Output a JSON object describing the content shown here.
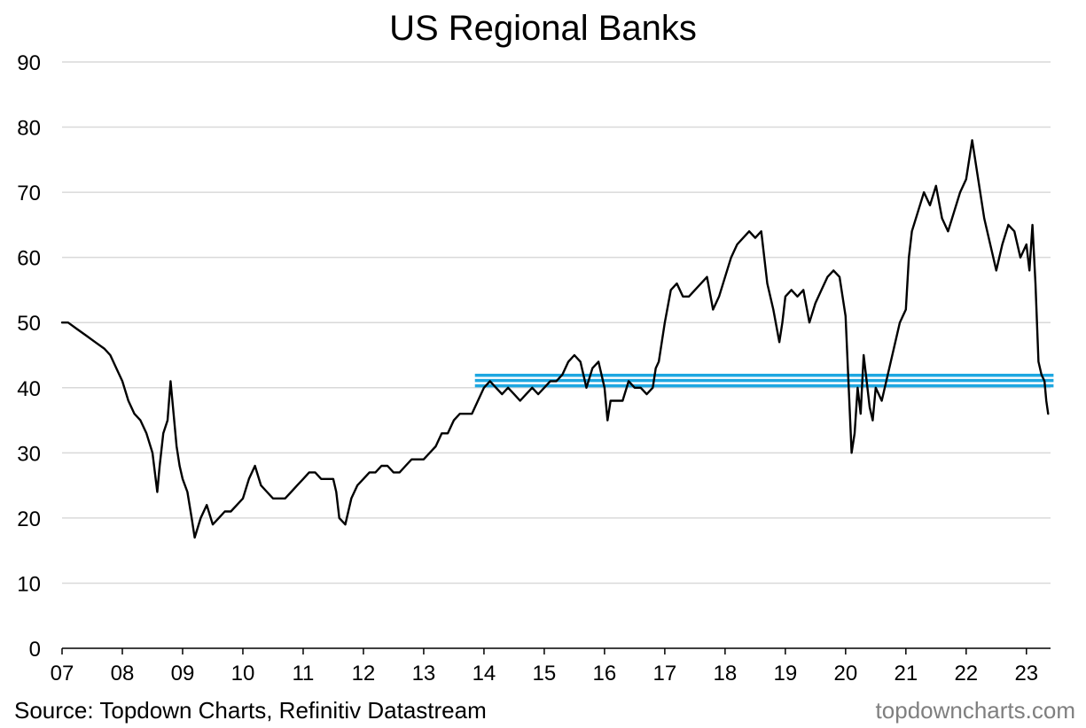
{
  "chart_data": {
    "type": "line",
    "title": "US Regional Banks",
    "xlabel": "",
    "ylabel": "",
    "ylim": [
      0,
      90
    ],
    "yticks": [
      0,
      10,
      20,
      30,
      40,
      50,
      60,
      70,
      80,
      90
    ],
    "xlim": [
      2007.0,
      2023.4
    ],
    "xticks": [
      {
        "value": 2007,
        "label": "07"
      },
      {
        "value": 2008,
        "label": "08"
      },
      {
        "value": 2009,
        "label": "09"
      },
      {
        "value": 2010,
        "label": "10"
      },
      {
        "value": 2011,
        "label": "11"
      },
      {
        "value": 2012,
        "label": "12"
      },
      {
        "value": 2013,
        "label": "13"
      },
      {
        "value": 2014,
        "label": "14"
      },
      {
        "value": 2015,
        "label": "15"
      },
      {
        "value": 2016,
        "label": "16"
      },
      {
        "value": 2017,
        "label": "17"
      },
      {
        "value": 2018,
        "label": "18"
      },
      {
        "value": 2019,
        "label": "19"
      },
      {
        "value": 2020,
        "label": "20"
      },
      {
        "value": 2021,
        "label": "21"
      },
      {
        "value": 2022,
        "label": "22"
      },
      {
        "value": 2023,
        "label": "23"
      }
    ],
    "grid": "horizontal",
    "series": [
      {
        "color": "#000000",
        "x": [
          2007.0,
          2007.1,
          2007.25,
          2007.4,
          2007.55,
          2007.7,
          2007.8,
          2007.9,
          2008.0,
          2008.1,
          2008.2,
          2008.3,
          2008.4,
          2008.5,
          2008.58,
          2008.62,
          2008.68,
          2008.75,
          2008.8,
          2008.85,
          2008.9,
          2008.95,
          2009.0,
          2009.08,
          2009.15,
          2009.2,
          2009.3,
          2009.4,
          2009.5,
          2009.6,
          2009.7,
          2009.8,
          2009.9,
          2010.0,
          2010.1,
          2010.2,
          2010.3,
          2010.4,
          2010.5,
          2010.6,
          2010.7,
          2010.8,
          2010.9,
          2011.0,
          2011.1,
          2011.2,
          2011.3,
          2011.4,
          2011.5,
          2011.55,
          2011.6,
          2011.7,
          2011.75,
          2011.8,
          2011.9,
          2012.0,
          2012.1,
          2012.2,
          2012.3,
          2012.4,
          2012.5,
          2012.6,
          2012.7,
          2012.8,
          2012.9,
          2013.0,
          2013.1,
          2013.2,
          2013.3,
          2013.4,
          2013.5,
          2013.6,
          2013.7,
          2013.8,
          2013.9,
          2014.0,
          2014.1,
          2014.2,
          2014.3,
          2014.4,
          2014.5,
          2014.6,
          2014.7,
          2014.8,
          2014.9,
          2015.0,
          2015.1,
          2015.2,
          2015.3,
          2015.4,
          2015.5,
          2015.6,
          2015.7,
          2015.8,
          2015.9,
          2016.0,
          2016.05,
          2016.1,
          2016.2,
          2016.3,
          2016.4,
          2016.5,
          2016.6,
          2016.7,
          2016.8,
          2016.85,
          2016.9,
          2017.0,
          2017.1,
          2017.2,
          2017.3,
          2017.4,
          2017.5,
          2017.6,
          2017.7,
          2017.8,
          2017.9,
          2018.0,
          2018.1,
          2018.2,
          2018.3,
          2018.4,
          2018.5,
          2018.6,
          2018.7,
          2018.8,
          2018.9,
          2018.95,
          2019.0,
          2019.1,
          2019.2,
          2019.3,
          2019.4,
          2019.5,
          2019.6,
          2019.7,
          2019.8,
          2019.9,
          2020.0,
          2020.1,
          2020.15,
          2020.2,
          2020.25,
          2020.3,
          2020.4,
          2020.45,
          2020.5,
          2020.6,
          2020.7,
          2020.8,
          2020.9,
          2021.0,
          2021.05,
          2021.1,
          2021.2,
          2021.3,
          2021.4,
          2021.5,
          2021.6,
          2021.7,
          2021.8,
          2021.9,
          2022.0,
          2022.05,
          2022.1,
          2022.15,
          2022.2,
          2022.3,
          2022.4,
          2022.5,
          2022.6,
          2022.7,
          2022.8,
          2022.9,
          2023.0,
          2023.05,
          2023.1,
          2023.15,
          2023.2,
          2023.25,
          2023.3,
          2023.33,
          2023.36
        ],
        "y": [
          50,
          50,
          49,
          48,
          47,
          46,
          45,
          43,
          41,
          38,
          36,
          35,
          33,
          30,
          24,
          28,
          33,
          35,
          41,
          36,
          31,
          28,
          26,
          24,
          20,
          17,
          20,
          22,
          19,
          20,
          21,
          21,
          22,
          23,
          26,
          28,
          25,
          24,
          23,
          23,
          23,
          24,
          25,
          26,
          27,
          27,
          26,
          26,
          26,
          24,
          20,
          19,
          21,
          23,
          25,
          26,
          27,
          27,
          28,
          28,
          27,
          27,
          28,
          29,
          29,
          29,
          30,
          31,
          33,
          33,
          35,
          36,
          36,
          36,
          38,
          40,
          41,
          40,
          39,
          40,
          39,
          38,
          39,
          40,
          39,
          40,
          41,
          41,
          42,
          44,
          45,
          44,
          40,
          43,
          44,
          40,
          35,
          38,
          38,
          38,
          41,
          40,
          40,
          39,
          40,
          43,
          44,
          50,
          55,
          56,
          54,
          54,
          55,
          56,
          57,
          52,
          54,
          57,
          60,
          62,
          63,
          64,
          63,
          64,
          56,
          52,
          47,
          50,
          54,
          55,
          54,
          55,
          50,
          53,
          55,
          57,
          58,
          57,
          51,
          30,
          33,
          40,
          36,
          45,
          37,
          35,
          40,
          38,
          42,
          46,
          50,
          52,
          60,
          64,
          67,
          70,
          68,
          71,
          66,
          64,
          67,
          70,
          72,
          75,
          78,
          75,
          72,
          66,
          62,
          58,
          62,
          65,
          64,
          60,
          62,
          58,
          65,
          56,
          44,
          42,
          41,
          38,
          36
        ]
      }
    ],
    "reference_lines": [
      {
        "x_start": 2013.85,
        "x_end": 2023.45,
        "y_values": [
          40.3,
          41.1,
          41.9
        ],
        "color": "#1ea7e1"
      }
    ],
    "annotations": {
      "source": "Source: Topdown Charts, Refinitiv Datastream",
      "credit": "topdowncharts.com"
    }
  }
}
